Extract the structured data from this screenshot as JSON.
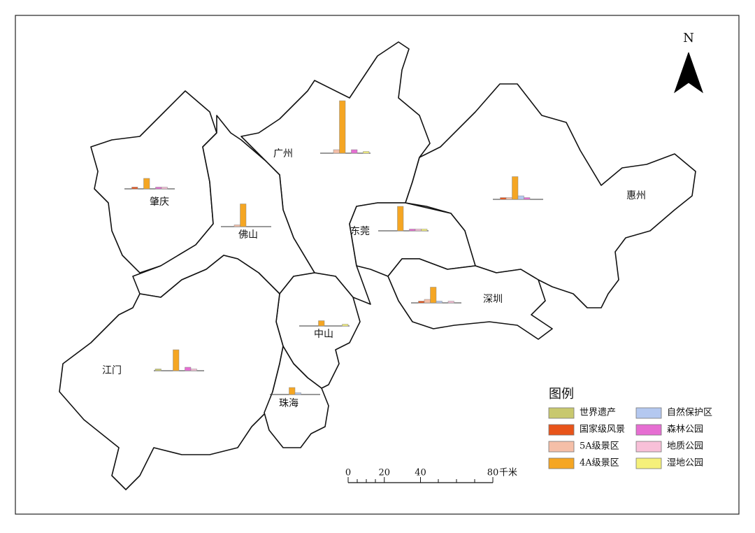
{
  "north": "N",
  "legend": {
    "title": "图例",
    "items": [
      {
        "label": "世界遗产",
        "color": "#c8c86e"
      },
      {
        "label": "国家级风景",
        "color": "#e8541a"
      },
      {
        "label": "5A级景区",
        "color": "#f5bfa8"
      },
      {
        "label": "4A级景区",
        "color": "#f5a623"
      },
      {
        "label": "自然保护区",
        "color": "#b4c8f0"
      },
      {
        "label": "森林公园",
        "color": "#e66ed2"
      },
      {
        "label": "地质公园",
        "color": "#f8c0d8"
      },
      {
        "label": "湿地公园",
        "color": "#f5f07a"
      }
    ]
  },
  "scale_bar": {
    "ticks": [
      0,
      20,
      40,
      80
    ],
    "unit": "千米"
  },
  "cities": [
    {
      "name": "广州",
      "values": [
        0,
        0,
        2,
        30,
        0,
        2,
        0,
        1
      ]
    },
    {
      "name": "肇庆",
      "values": [
        0,
        1,
        0,
        6,
        0,
        1,
        1,
        0
      ]
    },
    {
      "name": "佛山",
      "values": [
        0,
        0,
        1,
        13,
        0,
        0,
        0,
        0
      ]
    },
    {
      "name": "东莞",
      "values": [
        0,
        0,
        0,
        14,
        0,
        1,
        1,
        1
      ]
    },
    {
      "name": "惠州",
      "values": [
        0,
        1,
        1,
        13,
        2,
        1,
        0,
        0
      ]
    },
    {
      "name": "深圳",
      "values": [
        0,
        1,
        2,
        9,
        1,
        0,
        1,
        0
      ]
    },
    {
      "name": "中山",
      "values": [
        0,
        0,
        0,
        3,
        0,
        0,
        0,
        1
      ]
    },
    {
      "name": "江门",
      "values": [
        1,
        0,
        0,
        12,
        0,
        2,
        1,
        0
      ]
    },
    {
      "name": "珠海",
      "values": [
        0,
        0,
        0,
        4,
        1,
        0,
        0,
        0
      ]
    }
  ]
}
